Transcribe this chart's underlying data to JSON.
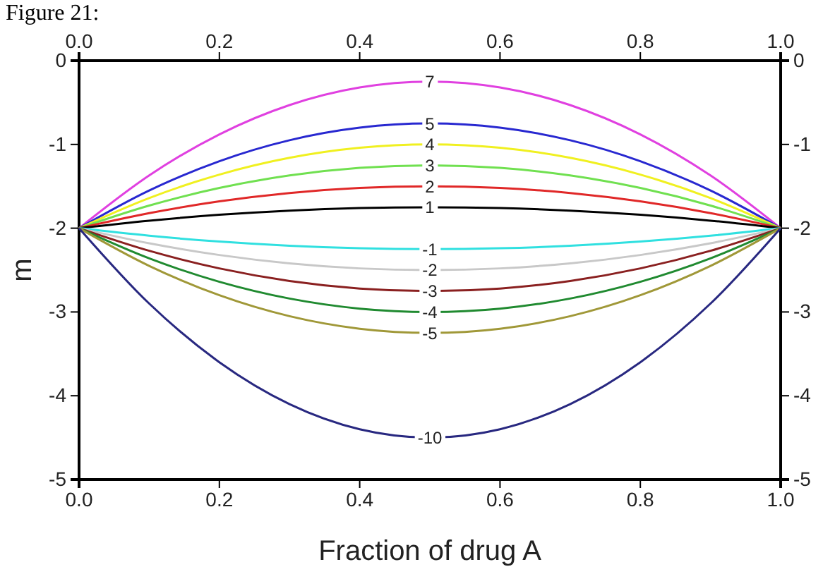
{
  "chart_data": {
    "type": "line",
    "title": "Figure 21:",
    "xlabel": "Fraction of drug A",
    "ylabel": "m",
    "x": [
      0,
      0.1,
      0.2,
      0.3,
      0.4,
      0.5,
      0.6,
      0.7,
      0.8,
      0.9,
      1.0
    ],
    "xlim": [
      0,
      1
    ],
    "xticks": [
      {
        "value": 0,
        "label": "0.0"
      },
      0.2,
      0.4,
      0.6,
      0.8,
      {
        "value": 1,
        "label": "1.0"
      }
    ],
    "x2lim": [
      0,
      1
    ],
    "x2ticks": [
      {
        "value": 0,
        "label": "0.0"
      },
      0.2,
      0.4,
      0.6,
      0.8,
      {
        "value": 1,
        "label": "1.0"
      }
    ],
    "ylim": [
      -5,
      0
    ],
    "yticks": [
      0,
      -1,
      -2,
      -3,
      -4,
      -5
    ],
    "y2lim": [
      -5,
      0
    ],
    "y2ticks": [
      0,
      -1,
      -2,
      -3,
      -4,
      -5
    ],
    "grid": false,
    "marker": "none",
    "line_style": "solid",
    "series": [
      {
        "name": "7",
        "color": "#e040e0",
        "values": [
          -2,
          -1.37,
          -0.88,
          -0.53,
          -0.32,
          -0.25,
          -0.32,
          -0.53,
          -0.88,
          -1.37,
          -2
        ]
      },
      {
        "name": "5",
        "color": "#2828d0",
        "values": [
          -2,
          -1.55,
          -1.2,
          -0.95,
          -0.8,
          -0.75,
          -0.8,
          -0.95,
          -1.2,
          -1.55,
          -2
        ]
      },
      {
        "name": "4",
        "color": "#f0f020",
        "values": [
          -2,
          -1.64,
          -1.36,
          -1.16,
          -1.04,
          -1,
          -1.04,
          -1.16,
          -1.36,
          -1.64,
          -2
        ]
      },
      {
        "name": "3",
        "color": "#70e050",
        "values": [
          -2,
          -1.73,
          -1.52,
          -1.37,
          -1.28,
          -1.25,
          -1.28,
          -1.37,
          -1.52,
          -1.73,
          -2
        ]
      },
      {
        "name": "2",
        "color": "#e02828",
        "values": [
          -2,
          -1.82,
          -1.68,
          -1.58,
          -1.52,
          -1.5,
          -1.52,
          -1.58,
          -1.68,
          -1.82,
          -2
        ]
      },
      {
        "name": "1",
        "color": "#000000",
        "values": [
          -2,
          -1.91,
          -1.84,
          -1.79,
          -1.76,
          -1.75,
          -1.76,
          -1.79,
          -1.84,
          -1.91,
          -2
        ]
      },
      {
        "name": "-1",
        "color": "#30e0e0",
        "values": [
          -2,
          -2.09,
          -2.16,
          -2.21,
          -2.24,
          -2.25,
          -2.24,
          -2.21,
          -2.16,
          -2.09,
          -2
        ]
      },
      {
        "name": "-2",
        "color": "#c8c8c8",
        "values": [
          -2,
          -2.18,
          -2.32,
          -2.42,
          -2.48,
          -2.5,
          -2.48,
          -2.42,
          -2.32,
          -2.18,
          -2
        ]
      },
      {
        "name": "-3",
        "color": "#8a2020",
        "values": [
          -2,
          -2.27,
          -2.48,
          -2.63,
          -2.72,
          -2.75,
          -2.72,
          -2.63,
          -2.48,
          -2.27,
          -2
        ]
      },
      {
        "name": "-4",
        "color": "#208a30",
        "values": [
          -2,
          -2.36,
          -2.64,
          -2.84,
          -2.96,
          -3,
          -2.96,
          -2.84,
          -2.64,
          -2.36,
          -2
        ]
      },
      {
        "name": "-5",
        "color": "#a09838",
        "values": [
          -2,
          -2.45,
          -2.8,
          -3.05,
          -3.2,
          -3.25,
          -3.2,
          -3.05,
          -2.8,
          -2.45,
          -2
        ]
      },
      {
        "name": "-10",
        "color": "#282880",
        "values": [
          -2,
          -2.9,
          -3.6,
          -4.1,
          -4.4,
          -4.5,
          -4.4,
          -4.1,
          -3.6,
          -2.9,
          -2
        ]
      }
    ]
  }
}
